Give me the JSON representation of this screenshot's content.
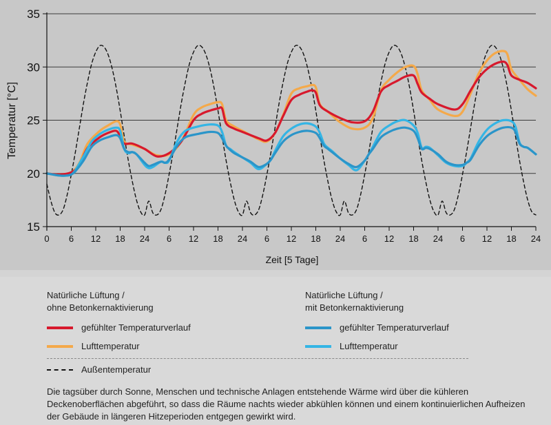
{
  "chart_data": {
    "type": "line",
    "xlabel": "Zeit [5 Tage]",
    "ylabel": "Temperatur [°C]",
    "ylim": [
      15,
      35
    ],
    "xlim": [
      0,
      120
    ],
    "yticks": [
      15,
      20,
      25,
      30,
      35
    ],
    "xtick_labels": [
      "0",
      "6",
      "12",
      "18",
      "24",
      "6",
      "12",
      "18",
      "24",
      "6",
      "12",
      "18",
      "24",
      "6",
      "12",
      "18",
      "24",
      "6",
      "12",
      "18",
      "24"
    ],
    "grid": "horizontal",
    "colors": {
      "red": "#d7192d",
      "orange": "#f4a94a",
      "blue_dark": "#2b95c9",
      "blue_light": "#34b5e5",
      "black": "#111111"
    },
    "series": [
      {
        "name": "Außentemperatur",
        "color": "#111111",
        "style": "dashed",
        "x": [
          0,
          1,
          2,
          3,
          4,
          5,
          6,
          7,
          8,
          9,
          10,
          11,
          12,
          13,
          14,
          15,
          16,
          17,
          18,
          19,
          20,
          21,
          22,
          23,
          24
        ],
        "y": [
          19.0,
          17.4,
          16.3,
          16.1,
          16.6,
          18.0,
          19.9,
          22.0,
          24.3,
          26.6,
          28.6,
          30.3,
          31.4,
          32.0,
          31.9,
          31.2,
          29.9,
          28.1,
          25.9,
          23.5,
          21.2,
          19.2,
          17.5,
          16.4,
          16.1
        ],
        "period_hours": 24
      },
      {
        "name": "Lufttemperatur (ohne Betonkernaktivierung)",
        "color": "#f4a94a",
        "x": [
          0,
          3,
          6,
          8,
          10,
          13,
          15,
          17,
          18,
          19,
          21,
          24,
          27,
          30,
          33,
          36,
          38,
          40,
          42,
          43,
          44,
          46,
          48,
          52,
          54,
          56,
          58,
          60,
          62,
          64,
          65,
          66,
          67,
          69,
          72,
          75,
          78,
          80,
          82,
          84,
          86,
          88,
          90,
          91,
          92,
          94,
          96,
          100,
          102,
          104,
          106,
          108,
          110,
          112,
          113,
          114,
          116,
          118,
          120
        ],
        "y": [
          20.0,
          19.9,
          20.1,
          21.0,
          22.8,
          24.0,
          24.5,
          24.9,
          24.6,
          23.0,
          22.7,
          22.3,
          21.7,
          21.8,
          23.0,
          25.5,
          26.2,
          26.5,
          26.7,
          26.5,
          25.0,
          24.4,
          24.0,
          23.2,
          23.0,
          23.8,
          25.5,
          27.5,
          28.0,
          28.2,
          28.3,
          28.1,
          26.5,
          25.8,
          24.8,
          24.2,
          24.3,
          25.2,
          27.8,
          28.8,
          29.5,
          30.0,
          30.1,
          29.3,
          27.8,
          26.9,
          26.0,
          25.4,
          25.8,
          27.5,
          29.4,
          30.6,
          31.3,
          31.5,
          31.2,
          29.8,
          28.8,
          27.9,
          27.3
        ]
      },
      {
        "name": "gefühlter Temperaturverlauf (ohne Betonkernaktivierung)",
        "color": "#d7192d",
        "x": [
          0,
          3,
          6,
          8,
          10,
          13,
          15,
          17,
          18,
          19,
          21,
          24,
          27,
          30,
          33,
          36,
          38,
          40,
          42,
          43,
          44,
          46,
          48,
          52,
          54,
          56,
          58,
          60,
          62,
          64,
          65,
          66,
          67,
          69,
          72,
          75,
          78,
          80,
          82,
          84,
          86,
          88,
          90,
          91,
          92,
          94,
          96,
          100,
          102,
          104,
          106,
          108,
          110,
          112,
          113,
          114,
          116,
          118,
          120
        ],
        "y": [
          20.0,
          19.9,
          20.1,
          20.8,
          22.4,
          23.4,
          23.8,
          24.0,
          23.5,
          22.8,
          22.8,
          22.3,
          21.6,
          21.9,
          23.0,
          25.0,
          25.6,
          25.9,
          26.1,
          26.1,
          24.7,
          24.2,
          23.9,
          23.3,
          23.1,
          23.8,
          25.4,
          26.9,
          27.4,
          27.7,
          27.8,
          27.6,
          26.4,
          25.8,
          25.2,
          24.8,
          24.9,
          25.8,
          27.7,
          28.3,
          28.7,
          29.1,
          29.2,
          28.4,
          27.6,
          27.0,
          26.5,
          26.0,
          26.5,
          27.8,
          29.0,
          29.8,
          30.3,
          30.5,
          30.2,
          29.2,
          28.8,
          28.5,
          28.0
        ]
      },
      {
        "name": "Lufttemperatur (mit Betonkernaktivierung)",
        "color": "#34b5e5",
        "x": [
          0,
          3,
          5,
          6,
          7,
          9,
          11,
          13,
          15,
          17,
          18,
          19,
          20,
          21,
          22,
          24,
          25,
          26,
          28,
          29,
          30,
          32,
          34,
          37,
          40,
          42,
          43,
          44,
          45,
          46,
          48,
          50,
          52,
          54,
          55,
          56,
          58,
          60,
          62,
          64,
          66,
          67,
          68,
          69,
          70,
          72,
          74,
          76,
          78,
          79,
          80,
          82,
          84,
          86,
          88,
          90,
          91,
          92,
          93,
          94,
          96,
          98,
          100,
          102,
          103,
          104,
          106,
          108,
          110,
          112,
          114,
          115,
          116,
          117,
          118,
          120
        ],
        "y": [
          20.0,
          19.8,
          19.8,
          19.9,
          20.3,
          21.6,
          23.0,
          23.7,
          24.1,
          24.3,
          24.0,
          22.3,
          21.9,
          22.0,
          21.8,
          20.8,
          20.5,
          20.6,
          21.1,
          21.0,
          21.2,
          23.0,
          24.0,
          24.4,
          24.6,
          24.5,
          23.9,
          22.6,
          22.3,
          22.0,
          21.5,
          21.0,
          20.4,
          20.9,
          21.3,
          22.1,
          23.5,
          24.2,
          24.6,
          24.7,
          24.4,
          23.8,
          22.8,
          22.4,
          22.1,
          21.4,
          20.8,
          20.3,
          21.2,
          21.8,
          22.5,
          23.9,
          24.5,
          24.9,
          25.0,
          24.5,
          23.8,
          22.4,
          22.5,
          22.4,
          21.7,
          21.0,
          20.7,
          20.7,
          21.0,
          21.4,
          23.0,
          24.1,
          24.7,
          25.0,
          24.9,
          24.4,
          22.9,
          22.5,
          22.4,
          21.8
        ]
      },
      {
        "name": "gefühlter Temperaturverlauf (mit Betonkernaktivierung)",
        "color": "#2b95c9",
        "x": [
          0,
          3,
          5,
          6,
          7,
          9,
          11,
          13,
          15,
          17,
          18,
          19,
          20,
          21,
          22,
          24,
          25,
          26,
          28,
          29,
          30,
          32,
          34,
          37,
          40,
          42,
          43,
          44,
          45,
          46,
          48,
          50,
          52,
          54,
          55,
          56,
          58,
          60,
          62,
          64,
          66,
          67,
          68,
          69,
          70,
          72,
          74,
          76,
          78,
          79,
          80,
          82,
          84,
          86,
          88,
          90,
          91,
          92,
          93,
          94,
          96,
          98,
          100,
          102,
          103,
          104,
          106,
          108,
          110,
          112,
          114,
          115,
          116,
          117,
          118,
          120
        ],
        "y": [
          20.0,
          19.8,
          19.8,
          19.9,
          20.2,
          21.2,
          22.5,
          23.1,
          23.4,
          23.6,
          23.3,
          22.3,
          22.0,
          22.0,
          21.8,
          21.0,
          20.7,
          20.8,
          21.1,
          21.0,
          21.3,
          22.6,
          23.4,
          23.7,
          23.9,
          23.8,
          23.3,
          22.6,
          22.2,
          21.9,
          21.5,
          21.1,
          20.6,
          20.9,
          21.3,
          21.9,
          23.0,
          23.6,
          23.9,
          24.0,
          23.8,
          23.3,
          22.6,
          22.3,
          22.0,
          21.4,
          20.9,
          20.6,
          21.2,
          21.8,
          22.3,
          23.4,
          23.9,
          24.2,
          24.3,
          24.0,
          23.3,
          22.3,
          22.4,
          22.3,
          21.8,
          21.1,
          20.8,
          20.8,
          21.0,
          21.3,
          22.6,
          23.5,
          24.0,
          24.3,
          24.3,
          23.9,
          22.8,
          22.5,
          22.4,
          21.8
        ]
      }
    ]
  },
  "legend": {
    "left_title_1": "Natürliche Lüftung /",
    "left_title_2": "ohne Betonkernaktivierung",
    "right_title_1": "Natürliche Lüftung /",
    "right_title_2": "mit Betonkernaktivierung",
    "felt_label": "gefühlter Temperaturverlauf",
    "air_label": "Lufttemperatur",
    "outside_label": "Außentemperatur"
  },
  "note": "Die tagsüber durch Sonne, Menschen und technische Anlagen entstehende Wärme wird über die kühleren Deckenoberflächen abgeführt, so dass die Räume nachts wieder abkühlen können und einem kontinuierlichen Aufheizen der Gebäude in längeren Hitzeperioden entgegen gewirkt wird."
}
